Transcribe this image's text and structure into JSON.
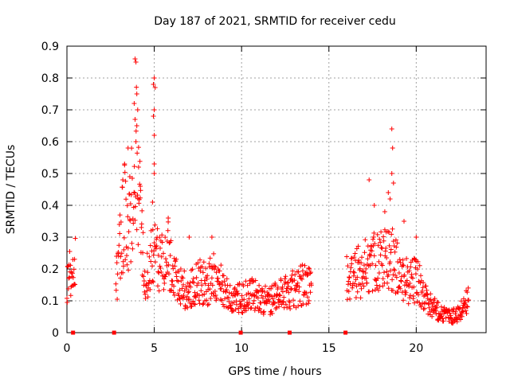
{
  "chart_data": {
    "type": "scatter",
    "title": "Day 187 of 2021, SRMTID for receiver cedu",
    "xlabel": "GPS time / hours",
    "ylabel": "SRMTID / TECUs",
    "xlim": [
      0,
      24
    ],
    "ylim": [
      0,
      0.9
    ],
    "grid": true,
    "marker": "+",
    "color": "#ff0000",
    "x_ticks": [
      "0",
      "5",
      "10",
      "15",
      "20"
    ],
    "x_tick_values": [
      0,
      5,
      10,
      15,
      20
    ],
    "y_ticks": [
      "0",
      "0.1",
      "0.2",
      "0.3",
      "0.4",
      "0.5",
      "0.6",
      "0.7",
      "0.8",
      "0.9"
    ],
    "y_tick_values": [
      0,
      0.1,
      0.2,
      0.3,
      0.4,
      0.5,
      0.6,
      0.7,
      0.8,
      0.9
    ],
    "zero_markers_x": [
      0.35,
      2.7,
      9.95,
      12.75,
      15.95
    ],
    "profile": [
      {
        "x": 0.0,
        "y": 0.17
      },
      {
        "x": 0.3,
        "y": 0.19
      },
      {
        "x": 0.5,
        "y": 0.25
      },
      {
        "x": 2.8,
        "y": 0.15
      },
      {
        "x": 3.0,
        "y": 0.25
      },
      {
        "x": 3.3,
        "y": 0.38
      },
      {
        "x": 3.5,
        "y": 0.3
      },
      {
        "x": 3.8,
        "y": 0.45
      },
      {
        "x": 4.0,
        "y": 0.55
      },
      {
        "x": 4.2,
        "y": 0.4
      },
      {
        "x": 4.4,
        "y": 0.18
      },
      {
        "x": 4.7,
        "y": 0.2
      },
      {
        "x": 5.0,
        "y": 0.3
      },
      {
        "x": 5.3,
        "y": 0.22
      },
      {
        "x": 5.8,
        "y": 0.24
      },
      {
        "x": 6.0,
        "y": 0.19
      },
      {
        "x": 6.5,
        "y": 0.14
      },
      {
        "x": 7.0,
        "y": 0.13
      },
      {
        "x": 7.5,
        "y": 0.17
      },
      {
        "x": 8.0,
        "y": 0.15
      },
      {
        "x": 8.5,
        "y": 0.18
      },
      {
        "x": 9.0,
        "y": 0.13
      },
      {
        "x": 9.5,
        "y": 0.1
      },
      {
        "x": 10.0,
        "y": 0.11
      },
      {
        "x": 10.5,
        "y": 0.12
      },
      {
        "x": 11.0,
        "y": 0.11
      },
      {
        "x": 11.5,
        "y": 0.1
      },
      {
        "x": 12.0,
        "y": 0.11
      },
      {
        "x": 12.5,
        "y": 0.13
      },
      {
        "x": 13.0,
        "y": 0.14
      },
      {
        "x": 13.5,
        "y": 0.15
      },
      {
        "x": 14.0,
        "y": 0.15
      },
      {
        "x": 16.0,
        "y": 0.17
      },
      {
        "x": 16.5,
        "y": 0.18
      },
      {
        "x": 17.0,
        "y": 0.2
      },
      {
        "x": 17.5,
        "y": 0.22
      },
      {
        "x": 18.0,
        "y": 0.23
      },
      {
        "x": 18.5,
        "y": 0.24
      },
      {
        "x": 19.0,
        "y": 0.19
      },
      {
        "x": 19.5,
        "y": 0.16
      },
      {
        "x": 20.0,
        "y": 0.17
      },
      {
        "x": 20.5,
        "y": 0.11
      },
      {
        "x": 21.0,
        "y": 0.08
      },
      {
        "x": 21.5,
        "y": 0.06
      },
      {
        "x": 22.0,
        "y": 0.05
      },
      {
        "x": 22.5,
        "y": 0.06
      },
      {
        "x": 23.0,
        "y": 0.12
      }
    ],
    "outliers": [
      {
        "x": 3.9,
        "y": 0.86
      },
      {
        "x": 3.95,
        "y": 0.85
      },
      {
        "x": 4.0,
        "y": 0.75
      },
      {
        "x": 3.85,
        "y": 0.72
      },
      {
        "x": 4.05,
        "y": 0.7
      },
      {
        "x": 3.9,
        "y": 0.67
      },
      {
        "x": 4.0,
        "y": 0.65
      },
      {
        "x": 3.95,
        "y": 0.6
      },
      {
        "x": 3.5,
        "y": 0.58
      },
      {
        "x": 3.3,
        "y": 0.53
      },
      {
        "x": 4.1,
        "y": 0.52
      },
      {
        "x": 3.6,
        "y": 0.49
      },
      {
        "x": 3.2,
        "y": 0.48
      },
      {
        "x": 4.2,
        "y": 0.46
      },
      {
        "x": 5.0,
        "y": 0.8
      },
      {
        "x": 4.95,
        "y": 0.78
      },
      {
        "x": 5.05,
        "y": 0.77
      },
      {
        "x": 5.0,
        "y": 0.7
      },
      {
        "x": 4.95,
        "y": 0.68
      },
      {
        "x": 5.0,
        "y": 0.62
      },
      {
        "x": 5.0,
        "y": 0.53
      },
      {
        "x": 5.0,
        "y": 0.5
      },
      {
        "x": 4.9,
        "y": 0.41
      },
      {
        "x": 18.6,
        "y": 0.64
      },
      {
        "x": 18.65,
        "y": 0.58
      },
      {
        "x": 18.6,
        "y": 0.5
      },
      {
        "x": 18.7,
        "y": 0.47
      },
      {
        "x": 17.3,
        "y": 0.48
      },
      {
        "x": 18.4,
        "y": 0.44
      },
      {
        "x": 18.5,
        "y": 0.42
      },
      {
        "x": 17.6,
        "y": 0.4
      },
      {
        "x": 18.2,
        "y": 0.38
      },
      {
        "x": 19.3,
        "y": 0.35
      },
      {
        "x": 20.0,
        "y": 0.3
      },
      {
        "x": 5.8,
        "y": 0.36
      },
      {
        "x": 8.3,
        "y": 0.3
      },
      {
        "x": 7.0,
        "y": 0.3
      }
    ]
  }
}
